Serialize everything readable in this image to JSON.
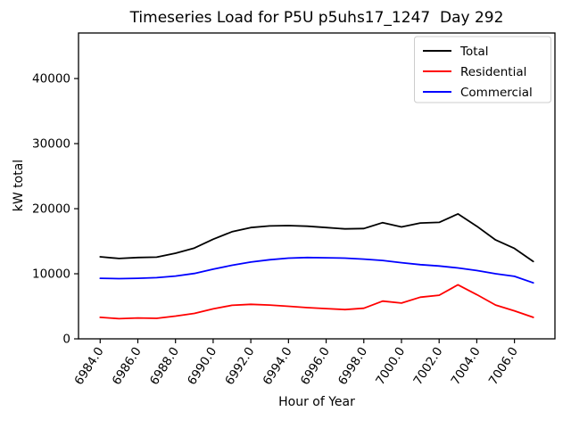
{
  "chart_data": {
    "type": "line",
    "title": "Timeseries Load for P5U p5uhs17_1247  Day 292",
    "xlabel": "Hour of Year",
    "ylabel": "kW total",
    "xlim": [
      6982.85,
      7008.15
    ],
    "ylim": [
      0,
      47000
    ],
    "xticks": [
      6984,
      6986,
      6988,
      6990,
      6992,
      6994,
      6996,
      6998,
      7000,
      7002,
      7004,
      7006
    ],
    "xtick_labels": [
      "6984.0",
      "6986.0",
      "6988.0",
      "6990.0",
      "6992.0",
      "6994.0",
      "6996.0",
      "6998.0",
      "7000.0",
      "7002.0",
      "7004.0",
      "7006.0"
    ],
    "yticks": [
      0,
      10000,
      20000,
      30000,
      40000
    ],
    "ytick_labels": [
      "0",
      "10000",
      "20000",
      "30000",
      "40000"
    ],
    "grid": false,
    "legend_position": "upper right",
    "x": [
      6984,
      6985,
      6986,
      6987,
      6988,
      6989,
      6990,
      6991,
      6992,
      6993,
      6994,
      6995,
      6996,
      6997,
      6998,
      6999,
      7000,
      7001,
      7002,
      7003,
      7004,
      7005,
      7006,
      7007
    ],
    "series": [
      {
        "name": "Total",
        "color": "#000000",
        "values": [
          12600,
          12350,
          12500,
          12550,
          13150,
          13950,
          15300,
          16450,
          17100,
          17350,
          17400,
          17300,
          17100,
          16900,
          16950,
          17850,
          17200,
          17800,
          17900,
          19200,
          17300,
          15200,
          13900,
          11900
        ]
      },
      {
        "name": "Residential",
        "color": "#ff0000",
        "values": [
          3300,
          3100,
          3200,
          3150,
          3500,
          3900,
          4600,
          5150,
          5300,
          5200,
          5000,
          4800,
          4650,
          4500,
          4700,
          5800,
          5500,
          6400,
          6700,
          8300,
          6800,
          5200,
          4300,
          3300
        ]
      },
      {
        "name": "Commercial",
        "color": "#0000ff",
        "values": [
          9300,
          9250,
          9300,
          9400,
          9650,
          10050,
          10700,
          11300,
          11800,
          12150,
          12400,
          12500,
          12450,
          12400,
          12250,
          12050,
          11700,
          11400,
          11200,
          10900,
          10500,
          10000,
          9600,
          8600
        ]
      }
    ],
    "colors": {
      "spine": "#000000",
      "legend_border": "#cccccc",
      "background": "#ffffff"
    }
  }
}
